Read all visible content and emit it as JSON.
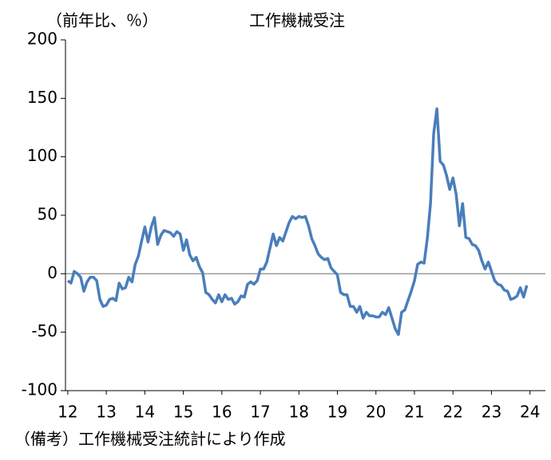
{
  "chart_data": {
    "type": "line",
    "title": "工作機械受注",
    "y_label": "（前年比、％）",
    "note": "（備考）工作機械受注統計により作成",
    "x": [
      12,
      12.083,
      12.167,
      12.25,
      12.333,
      12.417,
      12.5,
      12.583,
      12.667,
      12.75,
      12.833,
      12.917,
      13,
      13.083,
      13.167,
      13.25,
      13.333,
      13.417,
      13.5,
      13.583,
      13.667,
      13.75,
      13.833,
      13.917,
      14,
      14.083,
      14.167,
      14.25,
      14.333,
      14.417,
      14.5,
      14.583,
      14.667,
      14.75,
      14.833,
      14.917,
      15,
      15.083,
      15.167,
      15.25,
      15.333,
      15.417,
      15.5,
      15.583,
      15.667,
      15.75,
      15.833,
      15.917,
      16,
      16.083,
      16.167,
      16.25,
      16.333,
      16.417,
      16.5,
      16.583,
      16.667,
      16.75,
      16.833,
      16.917,
      17,
      17.083,
      17.167,
      17.25,
      17.333,
      17.417,
      17.5,
      17.583,
      17.667,
      17.75,
      17.833,
      17.917,
      18,
      18.083,
      18.167,
      18.25,
      18.333,
      18.417,
      18.5,
      18.583,
      18.667,
      18.75,
      18.833,
      18.917,
      19,
      19.083,
      19.167,
      19.25,
      19.333,
      19.417,
      19.5,
      19.583,
      19.667,
      19.75,
      19.833,
      19.917,
      20,
      20.083,
      20.167,
      20.25,
      20.333,
      20.417,
      20.5,
      20.583,
      20.667,
      20.75,
      20.833,
      20.917,
      21,
      21.083,
      21.167,
      21.25,
      21.333,
      21.417,
      21.5,
      21.583,
      21.667,
      21.75,
      21.833,
      21.917,
      22,
      22.083,
      22.167,
      22.25,
      22.333,
      22.417,
      22.5,
      22.583,
      22.667,
      22.75,
      22.833,
      22.917,
      23,
      23.083,
      23.167,
      23.25,
      23.333,
      23.417,
      23.5,
      23.583,
      23.667,
      23.75,
      23.833,
      23.917
    ],
    "series": [
      {
        "color": "#4a7ebb",
        "values": [
          -6,
          -8,
          2,
          0,
          -3,
          -15,
          -7,
          -3,
          -3,
          -6,
          -22,
          -28,
          -27,
          -22,
          -21,
          -23,
          -8,
          -13,
          -12,
          -3,
          -7,
          8,
          15,
          28,
          40,
          27,
          40,
          48,
          25,
          33,
          37,
          36,
          35,
          32,
          36,
          34,
          20,
          29,
          16,
          11,
          14,
          6,
          1,
          -16,
          -18,
          -22,
          -25,
          -18,
          -24,
          -18,
          -22,
          -21,
          -26,
          -24,
          -19,
          -20,
          -9,
          -7,
          -9,
          -6,
          4,
          4,
          10,
          22,
          34,
          24,
          31,
          28,
          36,
          44,
          49,
          47,
          49,
          48,
          49,
          41,
          30,
          24,
          17,
          14,
          12,
          13,
          5,
          2,
          -1,
          -16,
          -18,
          -18,
          -28,
          -28,
          -33,
          -28,
          -38,
          -33,
          -36,
          -36,
          -37,
          -37,
          -33,
          -35,
          -29,
          -38,
          -47,
          -52,
          -33,
          -31,
          -23,
          -15,
          -6,
          8,
          10,
          9,
          30,
          60,
          120,
          141,
          96,
          93,
          84,
          72,
          82,
          68,
          41,
          60,
          31,
          30,
          25,
          24,
          20,
          11,
          4,
          10,
          2,
          -6,
          -9,
          -10,
          -14,
          -15,
          -22,
          -21,
          -19,
          -12,
          -20,
          -10
        ]
      }
    ],
    "xlim": [
      11.94,
      24.4
    ],
    "ylim": [
      -100,
      200
    ],
    "xticks": [
      12,
      13,
      14,
      15,
      16,
      17,
      18,
      19,
      20,
      21,
      22,
      23,
      24
    ],
    "yticks": [
      -100,
      -50,
      0,
      50,
      100,
      150,
      200
    ]
  }
}
